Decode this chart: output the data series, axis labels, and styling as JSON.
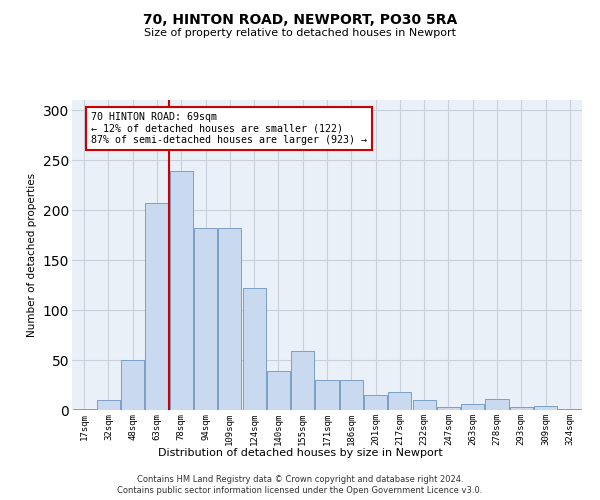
{
  "title1": "70, HINTON ROAD, NEWPORT, PO30 5RA",
  "title2": "Size of property relative to detached houses in Newport",
  "xlabel": "Distribution of detached houses by size in Newport",
  "ylabel": "Number of detached properties",
  "categories": [
    "17sqm",
    "32sqm",
    "48sqm",
    "63sqm",
    "78sqm",
    "94sqm",
    "109sqm",
    "124sqm",
    "140sqm",
    "155sqm",
    "171sqm",
    "186sqm",
    "201sqm",
    "217sqm",
    "232sqm",
    "247sqm",
    "263sqm",
    "278sqm",
    "293sqm",
    "309sqm",
    "324sqm"
  ],
  "values": [
    1,
    10,
    50,
    207,
    239,
    182,
    182,
    122,
    39,
    59,
    30,
    30,
    15,
    18,
    10,
    3,
    6,
    11,
    3,
    4,
    1
  ],
  "bar_color": "#c9d9ef",
  "bar_edge_color": "#7a9fc4",
  "grid_color": "#c8d0dc",
  "background_color": "#eaf0f8",
  "red_line_x": 3.5,
  "annotation_text": "70 HINTON ROAD: 69sqm\n← 12% of detached houses are smaller (122)\n87% of semi-detached houses are larger (923) →",
  "annotation_box_color": "#ffffff",
  "annotation_box_edge": "#cc0000",
  "ylim": [
    0,
    310
  ],
  "yticks": [
    0,
    50,
    100,
    150,
    200,
    250,
    300
  ],
  "footer1": "Contains HM Land Registry data © Crown copyright and database right 2024.",
  "footer2": "Contains public sector information licensed under the Open Government Licence v3.0."
}
